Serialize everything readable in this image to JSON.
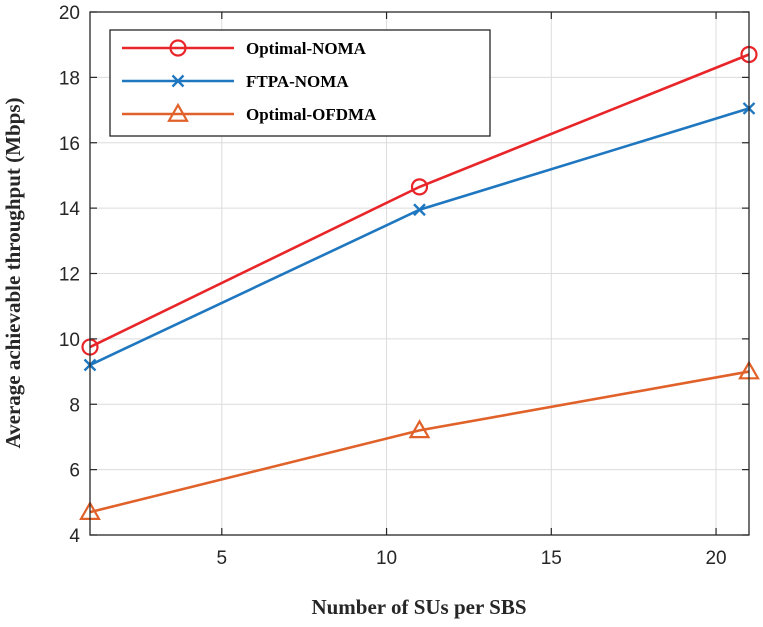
{
  "chart_data": {
    "type": "line",
    "title": "",
    "xlabel": "Number of SUs per SBS",
    "ylabel": "Average achievable throughput (Mbps)",
    "xlim": [
      1,
      21
    ],
    "ylim": [
      4,
      20
    ],
    "xticks": [
      5,
      10,
      15,
      20
    ],
    "yticks": [
      4,
      6,
      8,
      10,
      12,
      14,
      16,
      18,
      20
    ],
    "grid": true,
    "legend_position": "top-left",
    "x": [
      1,
      11,
      21
    ],
    "series": [
      {
        "name": "Optimal-NOMA",
        "values": [
          9.75,
          14.65,
          18.7
        ],
        "color": "#e8262a",
        "marker": "circle"
      },
      {
        "name": "FTPA-NOMA",
        "values": [
          9.2,
          13.95,
          17.05
        ],
        "color": "#1f77c0",
        "marker": "x"
      },
      {
        "name": "Optimal-OFDMA",
        "values": [
          4.7,
          7.2,
          9.0
        ],
        "color": "#e0622a",
        "marker": "triangle"
      }
    ]
  }
}
